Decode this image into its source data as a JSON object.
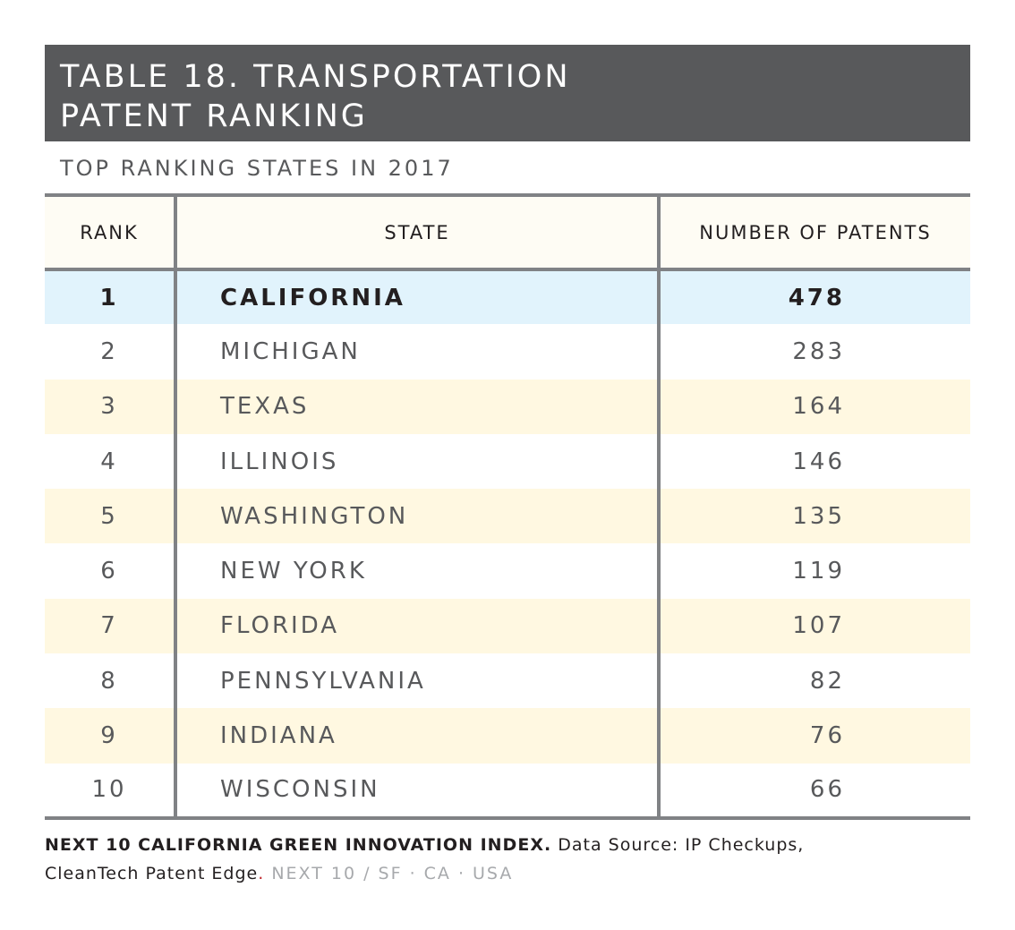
{
  "title_line1": "TABLE 18. TRANSPORTATION",
  "title_line2": "PATENT RANKING",
  "subtitle": "TOP RANKING STATES IN 2017",
  "colors": {
    "title_bg": "#58595b",
    "header_bg": "#fefcf4",
    "highlight_row": "#e1f3fc",
    "alt_row": "#fff8e1",
    "rule": "#808285"
  },
  "chart_data": {
    "type": "table",
    "columns": [
      "RANK",
      "STATE",
      "NUMBER OF PATENTS"
    ],
    "rows": [
      {
        "rank": "1",
        "state": "CALIFORNIA",
        "patents": "478"
      },
      {
        "rank": "2",
        "state": "MICHIGAN",
        "patents": "283"
      },
      {
        "rank": "3",
        "state": "TEXAS",
        "patents": "164"
      },
      {
        "rank": "4",
        "state": "ILLINOIS",
        "patents": "146"
      },
      {
        "rank": "5",
        "state": "WASHINGTON",
        "patents": "135"
      },
      {
        "rank": "6",
        "state": "NEW YORK",
        "patents": "119"
      },
      {
        "rank": "7",
        "state": "FLORIDA",
        "patents": "107"
      },
      {
        "rank": "8",
        "state": "PENNSYLVANIA",
        "patents": "82"
      },
      {
        "rank": "9",
        "state": "INDIANA",
        "patents": "76"
      },
      {
        "rank": "10",
        "state": "WISCONSIN",
        "patents": "66"
      }
    ]
  },
  "footer": {
    "bold_text": "NEXT 10 CALIFORNIA GREEN INNOVATION INDEX.",
    "source_text": " Data Source: IP Checkups,",
    "source_line2": "CleanTech Patent Edge",
    "period": ".",
    "org_text": " NEXT 10 / SF · CA · USA"
  }
}
